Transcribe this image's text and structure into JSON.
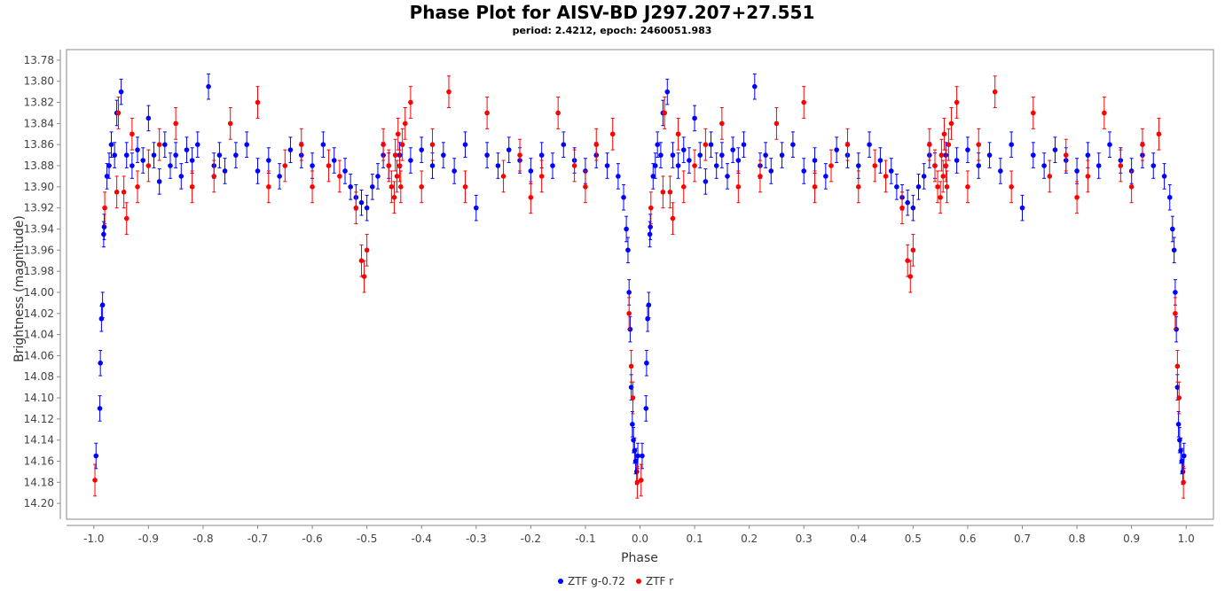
{
  "chart_data": {
    "type": "scatter",
    "title": "Phase Plot for AISV-BD J297.207+27.551",
    "subtitle": "period: 2.4212, epoch: 2460051.983",
    "xlabel": "Phase",
    "ylabel": "Brightness (magnitude)",
    "xlim": [
      -1.05,
      1.05
    ],
    "ylim": [
      13.77,
      14.215
    ],
    "y_inverted": true,
    "x_ticks": [
      -1.0,
      -0.9,
      -0.8,
      -0.7,
      -0.6,
      -0.5,
      -0.4,
      -0.3,
      -0.2,
      -0.1,
      0.0,
      0.1,
      0.2,
      0.3,
      0.4,
      0.5,
      0.6,
      0.7,
      0.8,
      0.9,
      1.0
    ],
    "x_tick_labels": [
      "-1.0",
      "-0.9",
      "-0.8",
      "-0.7",
      "-0.6",
      "-0.5",
      "-0.4",
      "-0.3",
      "-0.2",
      "-0.1",
      "0.0",
      "0.1",
      "0.2",
      "0.3",
      "0.4",
      "0.5",
      "0.6",
      "0.7",
      "0.8",
      "0.9",
      "1.0"
    ],
    "y_ticks": [
      13.78,
      13.8,
      13.82,
      13.84,
      13.86,
      13.88,
      13.9,
      13.92,
      13.94,
      13.96,
      13.98,
      14.0,
      14.02,
      14.04,
      14.06,
      14.08,
      14.1,
      14.12,
      14.14,
      14.16,
      14.18,
      14.2
    ],
    "y_tick_labels": [
      "13.78",
      "13.80",
      "13.82",
      "13.84",
      "13.86",
      "13.88",
      "13.90",
      "13.92",
      "13.94",
      "13.96",
      "13.98",
      "14.00",
      "14.02",
      "14.04",
      "14.06",
      "14.08",
      "14.10",
      "14.12",
      "14.14",
      "14.16",
      "14.18",
      "14.20"
    ],
    "legend_position": "bottom-center",
    "series": [
      {
        "name": "ZTF g-0.72",
        "color": "#0000ff",
        "points": [
          [
            -0.996,
            14.155,
            0.012
          ],
          [
            -0.989,
            14.11,
            0.012
          ],
          [
            -0.988,
            14.067,
            0.012
          ],
          [
            -0.986,
            14.025,
            0.012
          ],
          [
            -0.984,
            14.012,
            0.012
          ],
          [
            -0.982,
            13.945,
            0.012
          ],
          [
            -0.981,
            13.938,
            0.012
          ],
          [
            -0.976,
            13.89,
            0.012
          ],
          [
            -0.972,
            13.88,
            0.012
          ],
          [
            -0.968,
            13.86,
            0.012
          ],
          [
            -0.962,
            13.87,
            0.012
          ],
          [
            -0.958,
            13.83,
            0.012
          ],
          [
            -0.95,
            13.81,
            0.012
          ],
          [
            -0.94,
            13.87,
            0.012
          ],
          [
            -0.93,
            13.88,
            0.012
          ],
          [
            -0.92,
            13.865,
            0.012
          ],
          [
            -0.91,
            13.875,
            0.012
          ],
          [
            -0.9,
            13.835,
            0.012
          ],
          [
            -0.89,
            13.87,
            0.012
          ],
          [
            -0.88,
            13.895,
            0.012
          ],
          [
            -0.87,
            13.86,
            0.012
          ],
          [
            -0.86,
            13.88,
            0.012
          ],
          [
            -0.85,
            13.87,
            0.012
          ],
          [
            -0.84,
            13.89,
            0.012
          ],
          [
            -0.83,
            13.865,
            0.012
          ],
          [
            -0.82,
            13.875,
            0.012
          ],
          [
            -0.81,
            13.86,
            0.012
          ],
          [
            -0.79,
            13.805,
            0.012
          ],
          [
            -0.78,
            13.88,
            0.012
          ],
          [
            -0.77,
            13.87,
            0.012
          ],
          [
            -0.76,
            13.885,
            0.012
          ],
          [
            -0.74,
            13.87,
            0.012
          ],
          [
            -0.72,
            13.86,
            0.012
          ],
          [
            -0.7,
            13.885,
            0.012
          ],
          [
            -0.68,
            13.875,
            0.012
          ],
          [
            -0.66,
            13.89,
            0.012
          ],
          [
            -0.64,
            13.865,
            0.012
          ],
          [
            -0.62,
            13.87,
            0.012
          ],
          [
            -0.6,
            13.88,
            0.012
          ],
          [
            -0.58,
            13.86,
            0.012
          ],
          [
            -0.56,
            13.875,
            0.012
          ],
          [
            -0.54,
            13.885,
            0.012
          ],
          [
            -0.53,
            13.9,
            0.012
          ],
          [
            -0.52,
            13.91,
            0.012
          ],
          [
            -0.51,
            13.915,
            0.012
          ],
          [
            -0.5,
            13.92,
            0.012
          ],
          [
            -0.49,
            13.9,
            0.012
          ],
          [
            -0.48,
            13.89,
            0.012
          ],
          [
            -0.47,
            13.87,
            0.012
          ],
          [
            -0.46,
            13.88,
            0.012
          ],
          [
            -0.44,
            13.87,
            0.012
          ],
          [
            -0.42,
            13.875,
            0.012
          ],
          [
            -0.4,
            13.865,
            0.012
          ],
          [
            -0.38,
            13.88,
            0.012
          ],
          [
            -0.36,
            13.87,
            0.012
          ],
          [
            -0.34,
            13.885,
            0.012
          ],
          [
            -0.32,
            13.86,
            0.012
          ],
          [
            -0.3,
            13.92,
            0.012
          ],
          [
            -0.28,
            13.87,
            0.012
          ],
          [
            -0.26,
            13.88,
            0.012
          ],
          [
            -0.24,
            13.865,
            0.012
          ],
          [
            -0.22,
            13.875,
            0.012
          ],
          [
            -0.2,
            13.885,
            0.012
          ],
          [
            -0.18,
            13.87,
            0.012
          ],
          [
            -0.16,
            13.88,
            0.012
          ],
          [
            -0.14,
            13.86,
            0.012
          ],
          [
            -0.12,
            13.875,
            0.012
          ],
          [
            -0.1,
            13.885,
            0.012
          ],
          [
            -0.08,
            13.87,
            0.012
          ],
          [
            -0.06,
            13.88,
            0.012
          ],
          [
            -0.04,
            13.89,
            0.012
          ],
          [
            -0.03,
            13.91,
            0.012
          ],
          [
            -0.025,
            13.94,
            0.012
          ],
          [
            -0.022,
            13.96,
            0.012
          ],
          [
            -0.02,
            14.0,
            0.012
          ],
          [
            -0.018,
            14.035,
            0.012
          ],
          [
            -0.016,
            14.09,
            0.012
          ],
          [
            -0.014,
            14.125,
            0.012
          ],
          [
            -0.012,
            14.14,
            0.012
          ],
          [
            -0.01,
            14.15,
            0.012
          ],
          [
            -0.008,
            14.16,
            0.012
          ],
          [
            -0.006,
            14.17,
            0.012
          ],
          [
            -0.004,
            14.155,
            0.012
          ]
        ]
      },
      {
        "name": "ZTF r",
        "color": "#ff0000",
        "points": [
          [
            -0.998,
            14.178,
            0.015
          ],
          [
            -0.98,
            13.92,
            0.015
          ],
          [
            -0.958,
            13.905,
            0.015
          ],
          [
            -0.955,
            13.83,
            0.015
          ],
          [
            -0.945,
            13.905,
            0.015
          ],
          [
            -0.94,
            13.93,
            0.015
          ],
          [
            -0.93,
            13.85,
            0.015
          ],
          [
            -0.92,
            13.9,
            0.015
          ],
          [
            -0.9,
            13.88,
            0.015
          ],
          [
            -0.88,
            13.86,
            0.015
          ],
          [
            -0.85,
            13.84,
            0.015
          ],
          [
            -0.82,
            13.9,
            0.015
          ],
          [
            -0.78,
            13.89,
            0.015
          ],
          [
            -0.75,
            13.84,
            0.015
          ],
          [
            -0.7,
            13.82,
            0.015
          ],
          [
            -0.68,
            13.9,
            0.015
          ],
          [
            -0.65,
            13.88,
            0.015
          ],
          [
            -0.62,
            13.86,
            0.015
          ],
          [
            -0.6,
            13.9,
            0.015
          ],
          [
            -0.57,
            13.88,
            0.015
          ],
          [
            -0.55,
            13.89,
            0.015
          ],
          [
            -0.52,
            13.92,
            0.015
          ],
          [
            -0.51,
            13.97,
            0.015
          ],
          [
            -0.505,
            13.985,
            0.015
          ],
          [
            -0.5,
            13.96,
            0.015
          ],
          [
            -0.47,
            13.86,
            0.015
          ],
          [
            -0.46,
            13.88,
            0.015
          ],
          [
            -0.455,
            13.9,
            0.015
          ],
          [
            -0.45,
            13.91,
            0.015
          ],
          [
            -0.448,
            13.87,
            0.015
          ],
          [
            -0.445,
            13.89,
            0.015
          ],
          [
            -0.443,
            13.85,
            0.015
          ],
          [
            -0.44,
            13.88,
            0.015
          ],
          [
            -0.438,
            13.9,
            0.015
          ],
          [
            -0.435,
            13.86,
            0.015
          ],
          [
            -0.43,
            13.84,
            0.015
          ],
          [
            -0.42,
            13.82,
            0.015
          ],
          [
            -0.4,
            13.9,
            0.015
          ],
          [
            -0.38,
            13.86,
            0.015
          ],
          [
            -0.35,
            13.81,
            0.015
          ],
          [
            -0.32,
            13.9,
            0.015
          ],
          [
            -0.28,
            13.83,
            0.015
          ],
          [
            -0.25,
            13.89,
            0.015
          ],
          [
            -0.22,
            13.87,
            0.015
          ],
          [
            -0.2,
            13.91,
            0.015
          ],
          [
            -0.18,
            13.89,
            0.015
          ],
          [
            -0.15,
            13.83,
            0.015
          ],
          [
            -0.12,
            13.88,
            0.015
          ],
          [
            -0.1,
            13.9,
            0.015
          ],
          [
            -0.08,
            13.86,
            0.015
          ],
          [
            -0.05,
            13.85,
            0.015
          ],
          [
            -0.02,
            14.02,
            0.015
          ],
          [
            -0.016,
            14.07,
            0.015
          ],
          [
            -0.013,
            14.1,
            0.015
          ],
          [
            -0.005,
            14.18,
            0.015
          ]
        ]
      }
    ]
  },
  "legend": {
    "items": [
      {
        "label": "ZTF g-0.72",
        "color": "#0000ff"
      },
      {
        "label": "ZTF r",
        "color": "#ff0000"
      }
    ]
  }
}
